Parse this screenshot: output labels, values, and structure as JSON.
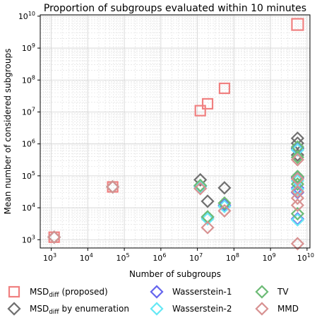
{
  "chart_data": {
    "type": "scatter",
    "title": "Proportion of subgroups evaluated within 10 minutes",
    "xlabel": "Number of subgroups",
    "ylabel": "Mean number of considered subgroups",
    "xscale": "log",
    "yscale": "log",
    "xlim": [
      500,
      12000000000
    ],
    "ylim": [
      550,
      11000000000
    ],
    "xticks": [
      {
        "value": 1000,
        "base": "10",
        "exp": "3"
      },
      {
        "value": 10000,
        "base": "10",
        "exp": "4"
      },
      {
        "value": 100000,
        "base": "10",
        "exp": "5"
      },
      {
        "value": 1000000,
        "base": "10",
        "exp": "6"
      },
      {
        "value": 10000000,
        "base": "10",
        "exp": "7"
      },
      {
        "value": 100000000,
        "base": "10",
        "exp": "8"
      },
      {
        "value": 1000000000,
        "base": "10",
        "exp": "9"
      },
      {
        "value": 10000000000,
        "base": "10",
        "exp": "10"
      }
    ],
    "yticks": [
      {
        "value": 1000,
        "base": "10",
        "exp": "3"
      },
      {
        "value": 10000,
        "base": "10",
        "exp": "4"
      },
      {
        "value": 100000,
        "base": "10",
        "exp": "5"
      },
      {
        "value": 1000000,
        "base": "10",
        "exp": "6"
      },
      {
        "value": 10000000,
        "base": "10",
        "exp": "7"
      },
      {
        "value": 100000000,
        "base": "10",
        "exp": "8"
      },
      {
        "value": 1000000000,
        "base": "10",
        "exp": "9"
      },
      {
        "value": 10000000000,
        "base": "10",
        "exp": "10"
      }
    ],
    "grid": true,
    "legend_position": "below",
    "series": [
      {
        "label_main": "MSD",
        "label_sub": "diff",
        "label_rest": " (proposed)",
        "marker": "square",
        "color": "#f08080",
        "points": [
          [
            1200,
            1200
          ],
          [
            48000,
            45000
          ],
          [
            12000000,
            11000000
          ],
          [
            19000000,
            18000000
          ],
          [
            55000000,
            55000000
          ],
          [
            5500000000,
            5500000000
          ]
        ]
      },
      {
        "label_main": "MSD",
        "label_sub": "diff",
        "label_rest": " by enumeration",
        "marker": "diamond",
        "color": "#707070",
        "points": [
          [
            1200,
            1200
          ],
          [
            48000,
            45000
          ],
          [
            12000000,
            75000
          ],
          [
            19000000,
            16000
          ],
          [
            55000000,
            42000
          ],
          [
            5500000000,
            1500000
          ],
          [
            5500000000,
            1050000
          ],
          [
            5500000000,
            700000
          ],
          [
            5500000000,
            450000
          ],
          [
            5500000000,
            90000
          ]
        ]
      },
      {
        "label_main": "Wasserstein-1",
        "label_sub": "",
        "label_rest": "",
        "marker": "diamond",
        "color": "#6666ee",
        "points": [
          [
            1200,
            1200
          ],
          [
            48000,
            45000
          ],
          [
            12000000,
            48000
          ],
          [
            19000000,
            5000
          ],
          [
            55000000,
            12000
          ],
          [
            5500000000,
            750000
          ],
          [
            5500000000,
            85000
          ],
          [
            5500000000,
            42000
          ],
          [
            5500000000,
            30000
          ],
          [
            5500000000,
            4500
          ]
        ]
      },
      {
        "label_main": "Wasserstein-2",
        "label_sub": "",
        "label_rest": "",
        "marker": "diamond",
        "color": "#66e8f5",
        "points": [
          [
            1200,
            1200
          ],
          [
            48000,
            45000
          ],
          [
            12000000,
            45000
          ],
          [
            19000000,
            4500
          ],
          [
            55000000,
            11000
          ],
          [
            5500000000,
            650000
          ],
          [
            5500000000,
            70000
          ],
          [
            5500000000,
            38000
          ],
          [
            5500000000,
            4200
          ]
        ]
      },
      {
        "label_main": "TV",
        "label_sub": "",
        "label_rest": "",
        "marker": "diamond",
        "color": "#6dbb76",
        "points": [
          [
            1200,
            1200
          ],
          [
            48000,
            45000
          ],
          [
            12000000,
            50000
          ],
          [
            19000000,
            5200
          ],
          [
            55000000,
            14000
          ],
          [
            5500000000,
            800000
          ],
          [
            5500000000,
            380000
          ],
          [
            5500000000,
            95000
          ],
          [
            5500000000,
            55000
          ],
          [
            5500000000,
            6500
          ]
        ]
      },
      {
        "label_main": "MMD",
        "label_sub": "",
        "label_rest": "",
        "marker": "diamond",
        "color": "#d89292",
        "points": [
          [
            1200,
            1200
          ],
          [
            48000,
            45000
          ],
          [
            12000000,
            40000
          ],
          [
            19000000,
            2400
          ],
          [
            55000000,
            8000
          ],
          [
            5500000000,
            320000
          ],
          [
            5500000000,
            80000
          ],
          [
            5500000000,
            32000
          ],
          [
            5500000000,
            20000
          ],
          [
            5500000000,
            12000
          ],
          [
            5500000000,
            750
          ]
        ]
      }
    ]
  }
}
